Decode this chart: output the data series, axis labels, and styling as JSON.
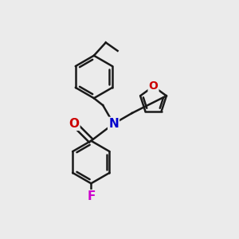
{
  "bg_color": "#ebebeb",
  "atom_colors": {
    "N": "#0000cc",
    "O": "#cc0000",
    "F": "#cc00cc"
  },
  "bond_color": "#1a1a1a",
  "bond_width": 1.8,
  "dbo": 0.09
}
